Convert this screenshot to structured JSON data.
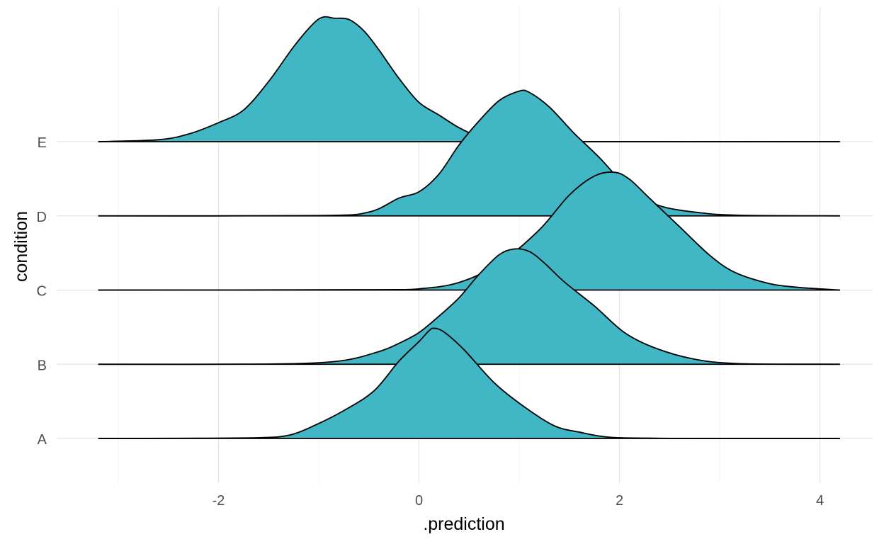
{
  "chart_data": {
    "type": "ridgeline",
    "xlabel": ".prediction",
    "ylabel": "condition",
    "xlim": [
      -3.2,
      4.2
    ],
    "x_ticks": [
      -2,
      0,
      2,
      4
    ],
    "fill_color": "#41b6c4",
    "line_color": "#000000",
    "grid": true,
    "categories": [
      "A",
      "B",
      "C",
      "D",
      "E"
    ],
    "density_scale": 1.75,
    "series": [
      {
        "category": "A",
        "x": [
          -3.2,
          -2.4,
          -1.6,
          -1.3,
          -1.05,
          -0.75,
          -0.45,
          -0.2,
          0.0,
          0.1,
          0.15,
          0.25,
          0.45,
          0.75,
          1.05,
          1.35,
          1.6,
          1.9,
          2.4,
          3.0,
          4.2
        ],
        "y": [
          0.0,
          0.003,
          0.013,
          0.05,
          0.2,
          0.44,
          0.75,
          1.22,
          1.53,
          1.7,
          1.74,
          1.68,
          1.4,
          0.88,
          0.5,
          0.2,
          0.1,
          0.02,
          0.003,
          0.0,
          0.0
        ]
      },
      {
        "category": "B",
        "x": [
          -3.2,
          -1.5,
          -0.8,
          -0.4,
          -0.2,
          0.0,
          0.2,
          0.4,
          0.6,
          0.8,
          0.95,
          1.1,
          1.25,
          1.45,
          1.75,
          2.05,
          2.35,
          2.75,
          3.2,
          4.2
        ],
        "y": [
          0.0,
          0.003,
          0.05,
          0.2,
          0.33,
          0.5,
          0.76,
          1.05,
          1.42,
          1.73,
          1.82,
          1.78,
          1.6,
          1.3,
          0.92,
          0.5,
          0.26,
          0.08,
          0.01,
          0.0
        ]
      },
      {
        "category": "C",
        "x": [
          -3.2,
          -0.5,
          0.0,
          0.4,
          0.8,
          1.2,
          1.5,
          1.75,
          1.95,
          2.1,
          2.3,
          2.6,
          2.9,
          3.15,
          3.5,
          3.8,
          4.2
        ],
        "y": [
          0.0,
          0.005,
          0.02,
          0.12,
          0.42,
          0.95,
          1.5,
          1.8,
          1.86,
          1.75,
          1.45,
          1.0,
          0.55,
          0.28,
          0.1,
          0.04,
          0.0
        ]
      },
      {
        "category": "D",
        "x": [
          -3.2,
          -1.0,
          -0.5,
          -0.2,
          0.0,
          0.2,
          0.4,
          0.6,
          0.8,
          1.0,
          1.1,
          1.3,
          1.55,
          1.8,
          2.1,
          2.4,
          2.8,
          3.2,
          4.2
        ],
        "y": [
          0.0,
          0.005,
          0.06,
          0.28,
          0.38,
          0.66,
          1.12,
          1.5,
          1.82,
          1.97,
          1.95,
          1.72,
          1.3,
          0.92,
          0.42,
          0.16,
          0.05,
          0.01,
          0.0
        ]
      },
      {
        "category": "E",
        "x": [
          -3.2,
          -2.6,
          -2.3,
          -2.0,
          -1.75,
          -1.5,
          -1.25,
          -1.05,
          -0.95,
          -0.85,
          -0.7,
          -0.55,
          -0.4,
          -0.2,
          0.0,
          0.2,
          0.4,
          0.6,
          0.8,
          1.2,
          4.2
        ],
        "y": [
          0.0,
          0.03,
          0.12,
          0.3,
          0.5,
          0.95,
          1.5,
          1.87,
          1.97,
          1.95,
          1.93,
          1.75,
          1.45,
          1.0,
          0.62,
          0.42,
          0.22,
          0.08,
          0.02,
          0.0,
          0.0
        ]
      }
    ]
  }
}
